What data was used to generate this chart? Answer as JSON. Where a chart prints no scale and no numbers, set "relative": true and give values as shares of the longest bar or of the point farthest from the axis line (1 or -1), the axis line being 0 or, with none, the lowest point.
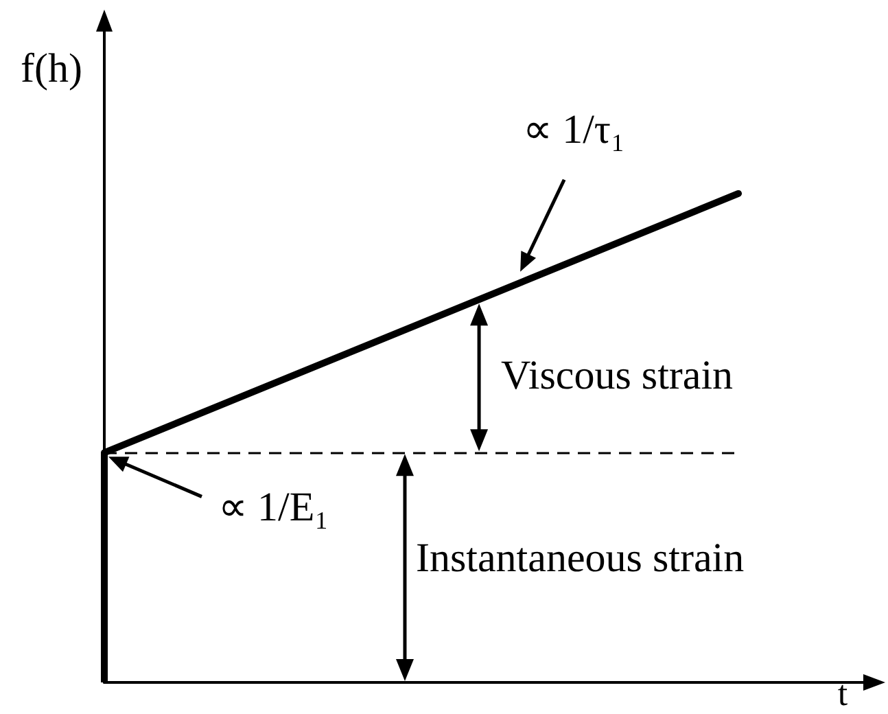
{
  "chart_data": {
    "type": "line",
    "xlabel": "t",
    "ylabel": "f(h)",
    "categories": [
      null,
      null
    ],
    "series": [
      {
        "color": "#000000",
        "values": [
          0.47,
          1
        ]
      }
    ],
    "relative": true,
    "marker": "none",
    "tick_labels": false,
    "ref_lines": [
      {
        "axis": "y",
        "value": 0.47,
        "line_style": "dashed",
        "color": "#000000"
      }
    ],
    "annotations": [
      "∝ 1/τ₁",
      "∝ 1/E₁",
      "Viscous strain",
      "Instantaneous strain"
    ]
  }
}
